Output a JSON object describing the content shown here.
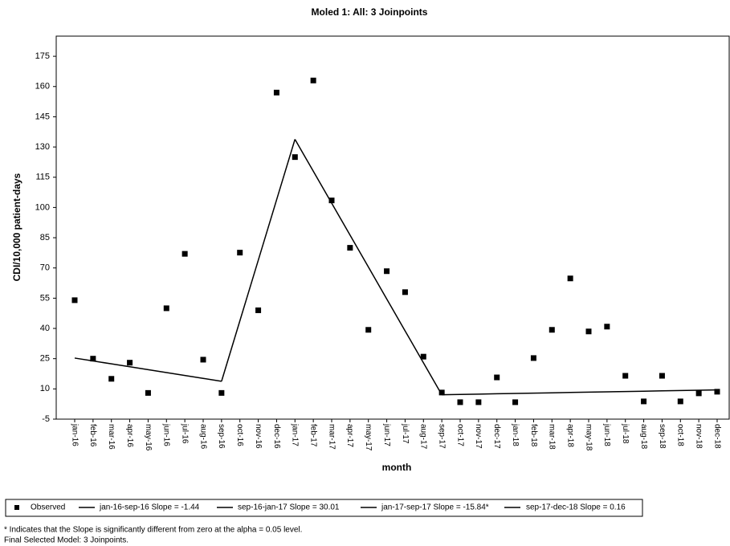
{
  "chart_data": {
    "type": "line",
    "title": "Moled 1: All: 3 Joinpoints",
    "x_label": "month",
    "y_label": "CDI/10,000 patient-days",
    "categories": [
      "jan-16",
      "feb-16",
      "mar-16",
      "apr-16",
      "may-16",
      "jun-16",
      "jul-16",
      "aug-16",
      "sep-16",
      "oct-16",
      "nov-16",
      "dec-16",
      "jan-17",
      "feb-17",
      "mar-17",
      "apr-17",
      "may-17",
      "jun-17",
      "jul-17",
      "aug-17",
      "sep-17",
      "oct-17",
      "nov-17",
      "dec-17",
      "jan-18",
      "feb-18",
      "mar-18",
      "apr-18",
      "may-18",
      "jun-18",
      "jul-18",
      "aug-18",
      "sep-18",
      "oct-18",
      "nov-18",
      "dec-18"
    ],
    "ylim": [
      -5,
      185
    ],
    "yticks": [
      -5,
      10,
      25,
      40,
      55,
      70,
      85,
      100,
      115,
      130,
      145,
      160,
      175
    ],
    "grid": false,
    "series": [
      {
        "name": "Observed",
        "mode": "markers",
        "color": "#000000",
        "values": [
          54,
          25,
          15,
          23,
          8,
          50,
          77,
          24.5,
          8,
          77.6,
          49,
          157,
          125,
          163,
          103.5,
          80,
          39.3,
          68.4,
          58,
          26,
          8.2,
          3.4,
          3.4,
          15.7,
          3.4,
          25.3,
          39.3,
          64.8,
          38.5,
          40.9,
          16.5,
          3.8,
          16.5,
          3.8,
          7.8,
          8.6
        ]
      },
      {
        "name": "jan-16-sep-16 Slope  = -1.44",
        "mode": "line",
        "color": "#000000",
        "values": [
          25.3,
          23.86,
          22.42,
          20.98,
          19.54,
          18.1,
          16.66,
          15.22,
          13.78,
          null,
          null,
          null,
          null,
          null,
          null,
          null,
          null,
          null,
          null,
          null,
          null,
          null,
          null,
          null,
          null,
          null,
          null,
          null,
          null,
          null,
          null,
          null,
          null,
          null,
          null,
          null
        ]
      },
      {
        "name": "sep-16-jan-17 Slope  = 30.01",
        "mode": "line",
        "color": "#000000",
        "values": [
          null,
          null,
          null,
          null,
          null,
          null,
          null,
          null,
          13.78,
          43.79,
          73.8,
          103.81,
          133.82,
          null,
          null,
          null,
          null,
          null,
          null,
          null,
          null,
          null,
          null,
          null,
          null,
          null,
          null,
          null,
          null,
          null,
          null,
          null,
          null,
          null,
          null,
          null
        ]
      },
      {
        "name": "jan-17-sep-17 Slope  = -15.84*",
        "mode": "line",
        "color": "#000000",
        "values": [
          null,
          null,
          null,
          null,
          null,
          null,
          null,
          null,
          null,
          null,
          null,
          null,
          133.82,
          117.98,
          102.14,
          86.3,
          70.46,
          54.62,
          38.78,
          22.94,
          7.1,
          null,
          null,
          null,
          null,
          null,
          null,
          null,
          null,
          null,
          null,
          null,
          null,
          null,
          null,
          null
        ]
      },
      {
        "name": "sep-17-dec-18 Slope  =  0.16",
        "mode": "line",
        "color": "#000000",
        "values": [
          null,
          null,
          null,
          null,
          null,
          null,
          null,
          null,
          null,
          null,
          null,
          null,
          null,
          null,
          null,
          null,
          null,
          null,
          null,
          null,
          7.1,
          7.26,
          7.42,
          7.58,
          7.74,
          7.9,
          8.06,
          8.22,
          8.38,
          8.54,
          8.7,
          8.86,
          9.02,
          9.18,
          9.34,
          9.5
        ]
      }
    ],
    "footnotes": [
      "* Indicates that the Slope is significantly different from zero at the alpha = 0.05 level.",
      "Final Selected Model: 3 Joinpoints."
    ]
  }
}
